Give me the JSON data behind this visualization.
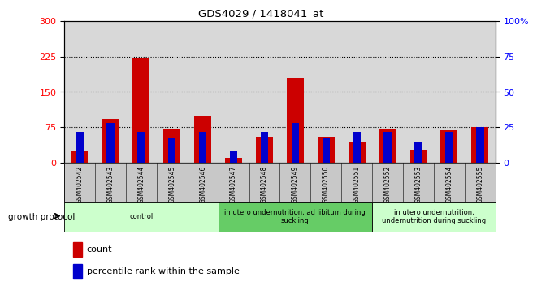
{
  "title": "GDS4029 / 1418041_at",
  "samples": [
    "GSM402542",
    "GSM402543",
    "GSM402544",
    "GSM402545",
    "GSM402546",
    "GSM402547",
    "GSM402548",
    "GSM402549",
    "GSM402550",
    "GSM402551",
    "GSM402552",
    "GSM402553",
    "GSM402554",
    "GSM402555"
  ],
  "count_values": [
    25,
    92,
    222,
    72,
    100,
    10,
    55,
    180,
    55,
    45,
    72,
    28,
    70,
    75
  ],
  "percentile_values": [
    22,
    28,
    22,
    18,
    22,
    8,
    22,
    28,
    18,
    22,
    22,
    15,
    22,
    25
  ],
  "groups": [
    {
      "label": "control",
      "start": 0,
      "end": 5,
      "color": "#ccffcc"
    },
    {
      "label": "in utero undernutrition, ad libitum during\nsuckling",
      "start": 5,
      "end": 10,
      "color": "#66cc66"
    },
    {
      "label": "in utero undernutrition,\nundernutrition during suckling",
      "start": 10,
      "end": 14,
      "color": "#ccffcc"
    }
  ],
  "ylim_left": [
    0,
    300
  ],
  "ylim_right": [
    0,
    100
  ],
  "yticks_left": [
    0,
    75,
    150,
    225,
    300
  ],
  "yticks_right": [
    0,
    25,
    50,
    75,
    100
  ],
  "count_color": "#cc0000",
  "percentile_color": "#0000cc",
  "plot_bg_color": "#d8d8d8",
  "legend_count": "count",
  "legend_percentile": "percentile rank within the sample",
  "growth_protocol_label": "growth protocol"
}
